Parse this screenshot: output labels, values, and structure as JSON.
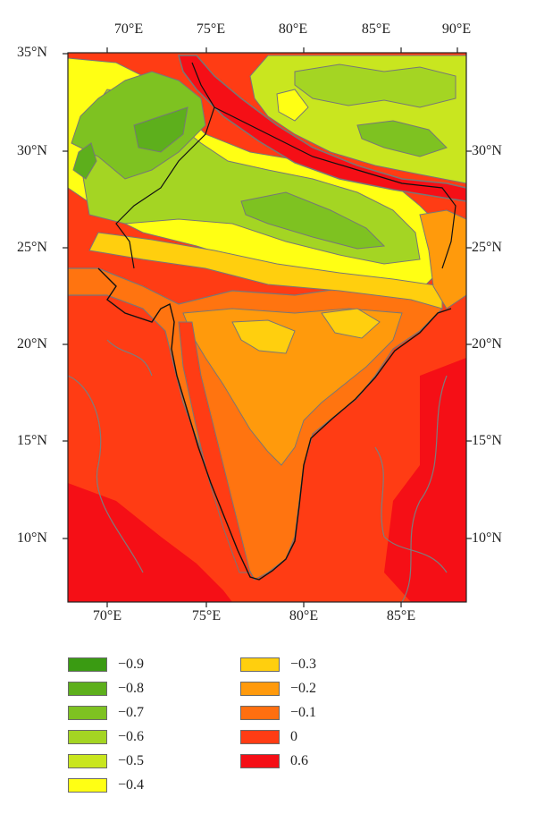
{
  "map": {
    "x_ticks": [
      "70°E",
      "75°E",
      "80°E",
      "85°E",
      "90°E"
    ],
    "y_ticks": [
      "35°N",
      "30°N",
      "25°N",
      "20°N",
      "15°N",
      "10°N"
    ]
  },
  "legend": {
    "items": [
      {
        "label": "−0.9",
        "color": "#3a9b12"
      },
      {
        "label": "−0.8",
        "color": "#5daf1c"
      },
      {
        "label": "−0.7",
        "color": "#7ec221"
      },
      {
        "label": "−0.6",
        "color": "#a4d523"
      },
      {
        "label": "−0.5",
        "color": "#c9e61f"
      },
      {
        "label": "−0.4",
        "color": "#ffff14"
      },
      {
        "label": "−0.3",
        "color": "#ffcf0e"
      },
      {
        "label": "−0.2",
        "color": "#ff9a0c"
      },
      {
        "label": "−0.1",
        "color": "#ff6f10"
      },
      {
        "label": "0",
        "color": "#ff3c14"
      },
      {
        "label": "0.6",
        "color": "#f50f16"
      }
    ]
  }
}
